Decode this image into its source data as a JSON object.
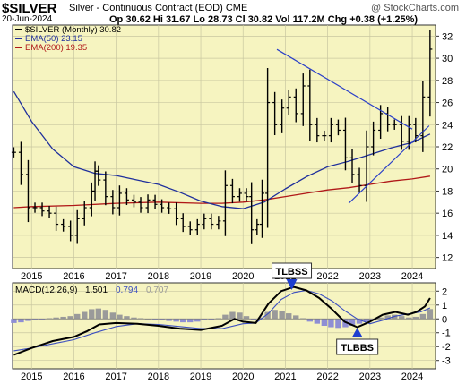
{
  "header": {
    "symbol": "$SILVER",
    "subtitle": "Silver - Continuous Contract (EOD) CME",
    "watermark": "@ StockCharts.com",
    "date": "20-Jun-2024",
    "ohlc": "Op 30.62  Hi 31.67  Lo 28.73  Cl 30.82  Vol 117.2M  Chg +0.38 (+1.25%)"
  },
  "colors": {
    "plot_bg": "#f6f4c0",
    "price": "#000000",
    "ema50": "#1f2f9c",
    "ema200": "#b01818",
    "trendline": "#2a3fc8",
    "macd": "#000000",
    "signal": "#3c4fc0",
    "histogram_pos": "#9a9a9a",
    "histogram_neg": "#8e8ed4"
  },
  "chart_data": [
    {
      "type": "line",
      "panel": "price",
      "legend": [
        {
          "label": "$SILVER (Monthly) 30.82",
          "color": "#000000"
        },
        {
          "label": "EMA(50) 23.15",
          "color": "#1f2f9c"
        },
        {
          "label": "EMA(200) 19.35",
          "color": "#b01818"
        }
      ],
      "legend_position": "top-left",
      "xlim": [
        2014.55,
        2024.55
      ],
      "ylim": [
        11,
        33
      ],
      "x_ticks": [
        2015,
        2016,
        2017,
        2018,
        2019,
        2020,
        2021,
        2022,
        2023,
        2024
      ],
      "x_tick_labels": [
        "2015",
        "2016",
        "2017",
        "2018",
        "2019",
        "2020",
        "2021",
        "2022",
        "2023",
        "2024"
      ],
      "y_ticks": [
        12,
        14,
        16,
        18,
        20,
        22,
        24,
        26,
        28,
        30,
        32
      ],
      "grid": true,
      "series": [
        {
          "name": "$SILVER (Monthly)",
          "style": "ohlc-bars",
          "x": [
            2014.58,
            2014.75,
            2014.92,
            2015.08,
            2015.25,
            2015.42,
            2015.58,
            2015.75,
            2015.92,
            2016.08,
            2016.25,
            2016.42,
            2016.5,
            2016.58,
            2016.75,
            2016.92,
            2017.08,
            2017.25,
            2017.42,
            2017.58,
            2017.75,
            2017.92,
            2018.08,
            2018.25,
            2018.42,
            2018.58,
            2018.75,
            2018.92,
            2019.08,
            2019.25,
            2019.42,
            2019.58,
            2019.75,
            2019.92,
            2020.08,
            2020.2,
            2020.33,
            2020.45,
            2020.58,
            2020.75,
            2020.92,
            2021.08,
            2021.25,
            2021.42,
            2021.58,
            2021.75,
            2021.92,
            2022.08,
            2022.25,
            2022.42,
            2022.58,
            2022.75,
            2022.92,
            2023.08,
            2023.25,
            2023.42,
            2023.58,
            2023.75,
            2023.92,
            2024.08,
            2024.25,
            2024.42
          ],
          "values": [
            21.5,
            19.5,
            16.5,
            16.5,
            16.2,
            16.0,
            15.0,
            14.8,
            14.0,
            15.5,
            16.5,
            18.0,
            19.8,
            19.0,
            17.5,
            16.5,
            17.8,
            17.2,
            17.0,
            16.5,
            17.2,
            16.8,
            16.5,
            16.4,
            15.5,
            14.8,
            14.5,
            15.0,
            15.5,
            15.0,
            15.3,
            18.5,
            17.5,
            17.8,
            17.5,
            14.5,
            15.0,
            17.8,
            26.0,
            24.0,
            25.5,
            26.5,
            25.0,
            27.5,
            24.0,
            23.0,
            23.0,
            24.0,
            23.5,
            21.0,
            19.5,
            18.5,
            22.0,
            23.5,
            25.0,
            24.0,
            24.0,
            22.5,
            24.0,
            23.0,
            26.5,
            30.82
          ]
        },
        {
          "name": "EMA(50)",
          "x": [
            2014.58,
            2015.0,
            2015.5,
            2016.0,
            2016.5,
            2017.0,
            2017.5,
            2018.0,
            2018.5,
            2019.0,
            2019.5,
            2020.0,
            2020.5,
            2021.0,
            2021.5,
            2022.0,
            2022.5,
            2023.0,
            2023.5,
            2024.0,
            2024.42
          ],
          "values": [
            27.0,
            24.3,
            21.8,
            20.2,
            19.6,
            19.4,
            19.0,
            18.6,
            17.9,
            17.1,
            16.6,
            16.4,
            17.0,
            18.2,
            19.3,
            20.2,
            20.7,
            21.3,
            21.9,
            22.4,
            23.15
          ]
        },
        {
          "name": "EMA(200)",
          "x": [
            2014.58,
            2015.0,
            2016.0,
            2017.0,
            2018.0,
            2019.0,
            2019.5,
            2020.0,
            2020.5,
            2021.0,
            2021.5,
            2022.0,
            2022.5,
            2023.0,
            2023.5,
            2024.0,
            2024.42
          ],
          "values": [
            16.5,
            16.6,
            16.7,
            16.9,
            17.0,
            16.9,
            16.9,
            17.0,
            17.2,
            17.5,
            17.8,
            18.1,
            18.3,
            18.6,
            18.9,
            19.1,
            19.35
          ]
        },
        {
          "name": "trendline-upper",
          "x": [
            2020.8,
            2024.0
          ],
          "values": [
            30.8,
            23.6
          ]
        },
        {
          "name": "trendline-lower",
          "x": [
            2022.5,
            2024.4
          ],
          "values": [
            16.9,
            23.9
          ]
        }
      ]
    },
    {
      "type": "line",
      "panel": "macd",
      "legend": [
        {
          "label": "MACD(12,26,9)",
          "color": "#000000"
        },
        {
          "label": "1.501",
          "color": "#000000"
        },
        {
          "label": "0.794",
          "color": "#3c4fc0"
        },
        {
          "label": "0.707",
          "color": "#9a9a9a"
        }
      ],
      "legend_position": "top-left",
      "xlim": [
        2014.55,
        2024.55
      ],
      "ylim": [
        -3.6,
        2.6
      ],
      "x_ticks": [
        2015,
        2016,
        2017,
        2018,
        2019,
        2020,
        2021,
        2022,
        2023,
        2024
      ],
      "x_tick_labels": [
        "2015",
        "2016",
        "2017",
        "2018",
        "2019",
        "2020",
        "2021",
        "2022",
        "2023",
        "2024"
      ],
      "y_ticks": [
        2,
        1,
        0,
        -1,
        -2,
        -3
      ],
      "annotations": [
        {
          "text": "TLBSS",
          "x": 2021.15,
          "y": 2.0
        },
        {
          "text": "TLBBS",
          "x": 2022.7,
          "y": -1.9
        }
      ],
      "series": [
        {
          "name": "MACD",
          "x": [
            2014.58,
            2015.0,
            2015.5,
            2016.0,
            2016.3,
            2016.6,
            2017.0,
            2017.5,
            2018.0,
            2018.5,
            2019.0,
            2019.5,
            2019.8,
            2020.0,
            2020.3,
            2020.6,
            2020.9,
            2021.2,
            2021.5,
            2021.8,
            2022.1,
            2022.4,
            2022.7,
            2023.0,
            2023.3,
            2023.6,
            2023.9,
            2024.1,
            2024.3,
            2024.42
          ],
          "values": [
            -2.6,
            -2.1,
            -1.6,
            -1.3,
            -0.9,
            -0.4,
            -0.3,
            -0.35,
            -0.5,
            -0.7,
            -0.8,
            -0.5,
            0.0,
            -0.2,
            -0.3,
            1.1,
            2.0,
            2.3,
            2.05,
            1.5,
            0.7,
            -0.2,
            -0.6,
            -0.2,
            0.3,
            0.5,
            0.3,
            0.5,
            0.9,
            1.501
          ]
        },
        {
          "name": "Signal",
          "x": [
            2014.58,
            2015.0,
            2015.5,
            2016.0,
            2016.5,
            2017.0,
            2017.5,
            2018.0,
            2018.5,
            2019.0,
            2019.5,
            2020.0,
            2020.3,
            2020.6,
            2020.9,
            2021.2,
            2021.5,
            2021.8,
            2022.1,
            2022.4,
            2022.7,
            2023.0,
            2023.3,
            2023.6,
            2023.9,
            2024.2,
            2024.42
          ],
          "values": [
            -2.3,
            -2.1,
            -1.8,
            -1.5,
            -1.0,
            -0.55,
            -0.35,
            -0.4,
            -0.55,
            -0.7,
            -0.7,
            -0.35,
            -0.3,
            0.4,
            1.4,
            1.9,
            2.05,
            1.8,
            1.3,
            0.6,
            0.0,
            -0.35,
            -0.1,
            0.2,
            0.35,
            0.5,
            0.794
          ]
        },
        {
          "name": "Histogram",
          "style": "bars",
          "x": [
            2014.58,
            2014.75,
            2014.92,
            2015.08,
            2015.25,
            2015.42,
            2015.58,
            2015.75,
            2015.92,
            2016.08,
            2016.25,
            2016.42,
            2016.58,
            2016.75,
            2016.92,
            2017.08,
            2017.25,
            2017.42,
            2017.58,
            2017.75,
            2017.92,
            2018.08,
            2018.25,
            2018.42,
            2018.58,
            2018.75,
            2018.92,
            2019.08,
            2019.25,
            2019.42,
            2019.58,
            2019.75,
            2019.92,
            2020.08,
            2020.25,
            2020.42,
            2020.58,
            2020.75,
            2020.92,
            2021.08,
            2021.25,
            2021.42,
            2021.58,
            2021.75,
            2021.92,
            2022.08,
            2022.25,
            2022.42,
            2022.58,
            2022.75,
            2022.92,
            2023.08,
            2023.25,
            2023.42,
            2023.58,
            2023.75,
            2023.92,
            2024.08,
            2024.25,
            2024.42
          ],
          "values": [
            -0.3,
            -0.25,
            -0.15,
            -0.1,
            -0.05,
            0.05,
            0.1,
            0.15,
            0.2,
            0.35,
            0.5,
            0.7,
            0.75,
            0.65,
            0.45,
            0.3,
            0.2,
            0.1,
            0.05,
            0.0,
            -0.05,
            -0.1,
            -0.15,
            -0.2,
            -0.25,
            -0.25,
            -0.2,
            -0.1,
            -0.05,
            0.05,
            0.3,
            0.5,
            0.45,
            0.2,
            -0.1,
            0.1,
            0.5,
            0.65,
            0.55,
            0.4,
            0.25,
            0.05,
            -0.2,
            -0.35,
            -0.5,
            -0.6,
            -0.65,
            -0.6,
            -0.5,
            -0.35,
            -0.2,
            -0.05,
            0.1,
            0.25,
            0.3,
            0.2,
            0.1,
            0.15,
            0.35,
            0.707
          ]
        }
      ]
    }
  ]
}
